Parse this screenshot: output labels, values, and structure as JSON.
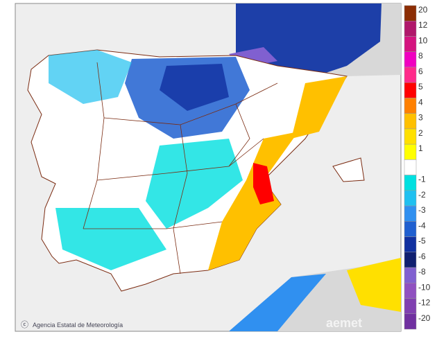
{
  "legend": {
    "items": [
      {
        "label": "20",
        "color": "#8c2d04"
      },
      {
        "label": "12",
        "color": "#b0186b"
      },
      {
        "label": "10",
        "color": "#d4147f"
      },
      {
        "label": "8",
        "color": "#f000c0"
      },
      {
        "label": "6",
        "color": "#ff2a8a"
      },
      {
        "label": "5",
        "color": "#ff0000"
      },
      {
        "label": "4",
        "color": "#ff8000"
      },
      {
        "label": "3",
        "color": "#ffc000"
      },
      {
        "label": "2",
        "color": "#ffe000"
      },
      {
        "label": "1",
        "color": "#ffff00"
      },
      {
        "label": null,
        "color": "#ffffff"
      },
      {
        "label": "-1",
        "color": "#00e0e0"
      },
      {
        "label": "-2",
        "color": "#20c0f0"
      },
      {
        "label": "-3",
        "color": "#3090f0"
      },
      {
        "label": "-4",
        "color": "#2060d0"
      },
      {
        "label": "-5",
        "color": "#1030a0"
      },
      {
        "label": "-6",
        "color": "#102070"
      },
      {
        "label": "-8",
        "color": "#8060d0"
      },
      {
        "label": "-10",
        "color": "#9050c0"
      },
      {
        "label": "-12",
        "color": "#8040b0"
      },
      {
        "label": "-20",
        "color": "#7030a0"
      }
    ]
  },
  "credit": "Agencia Estatal de Meteorología",
  "watermark": "aemet"
}
